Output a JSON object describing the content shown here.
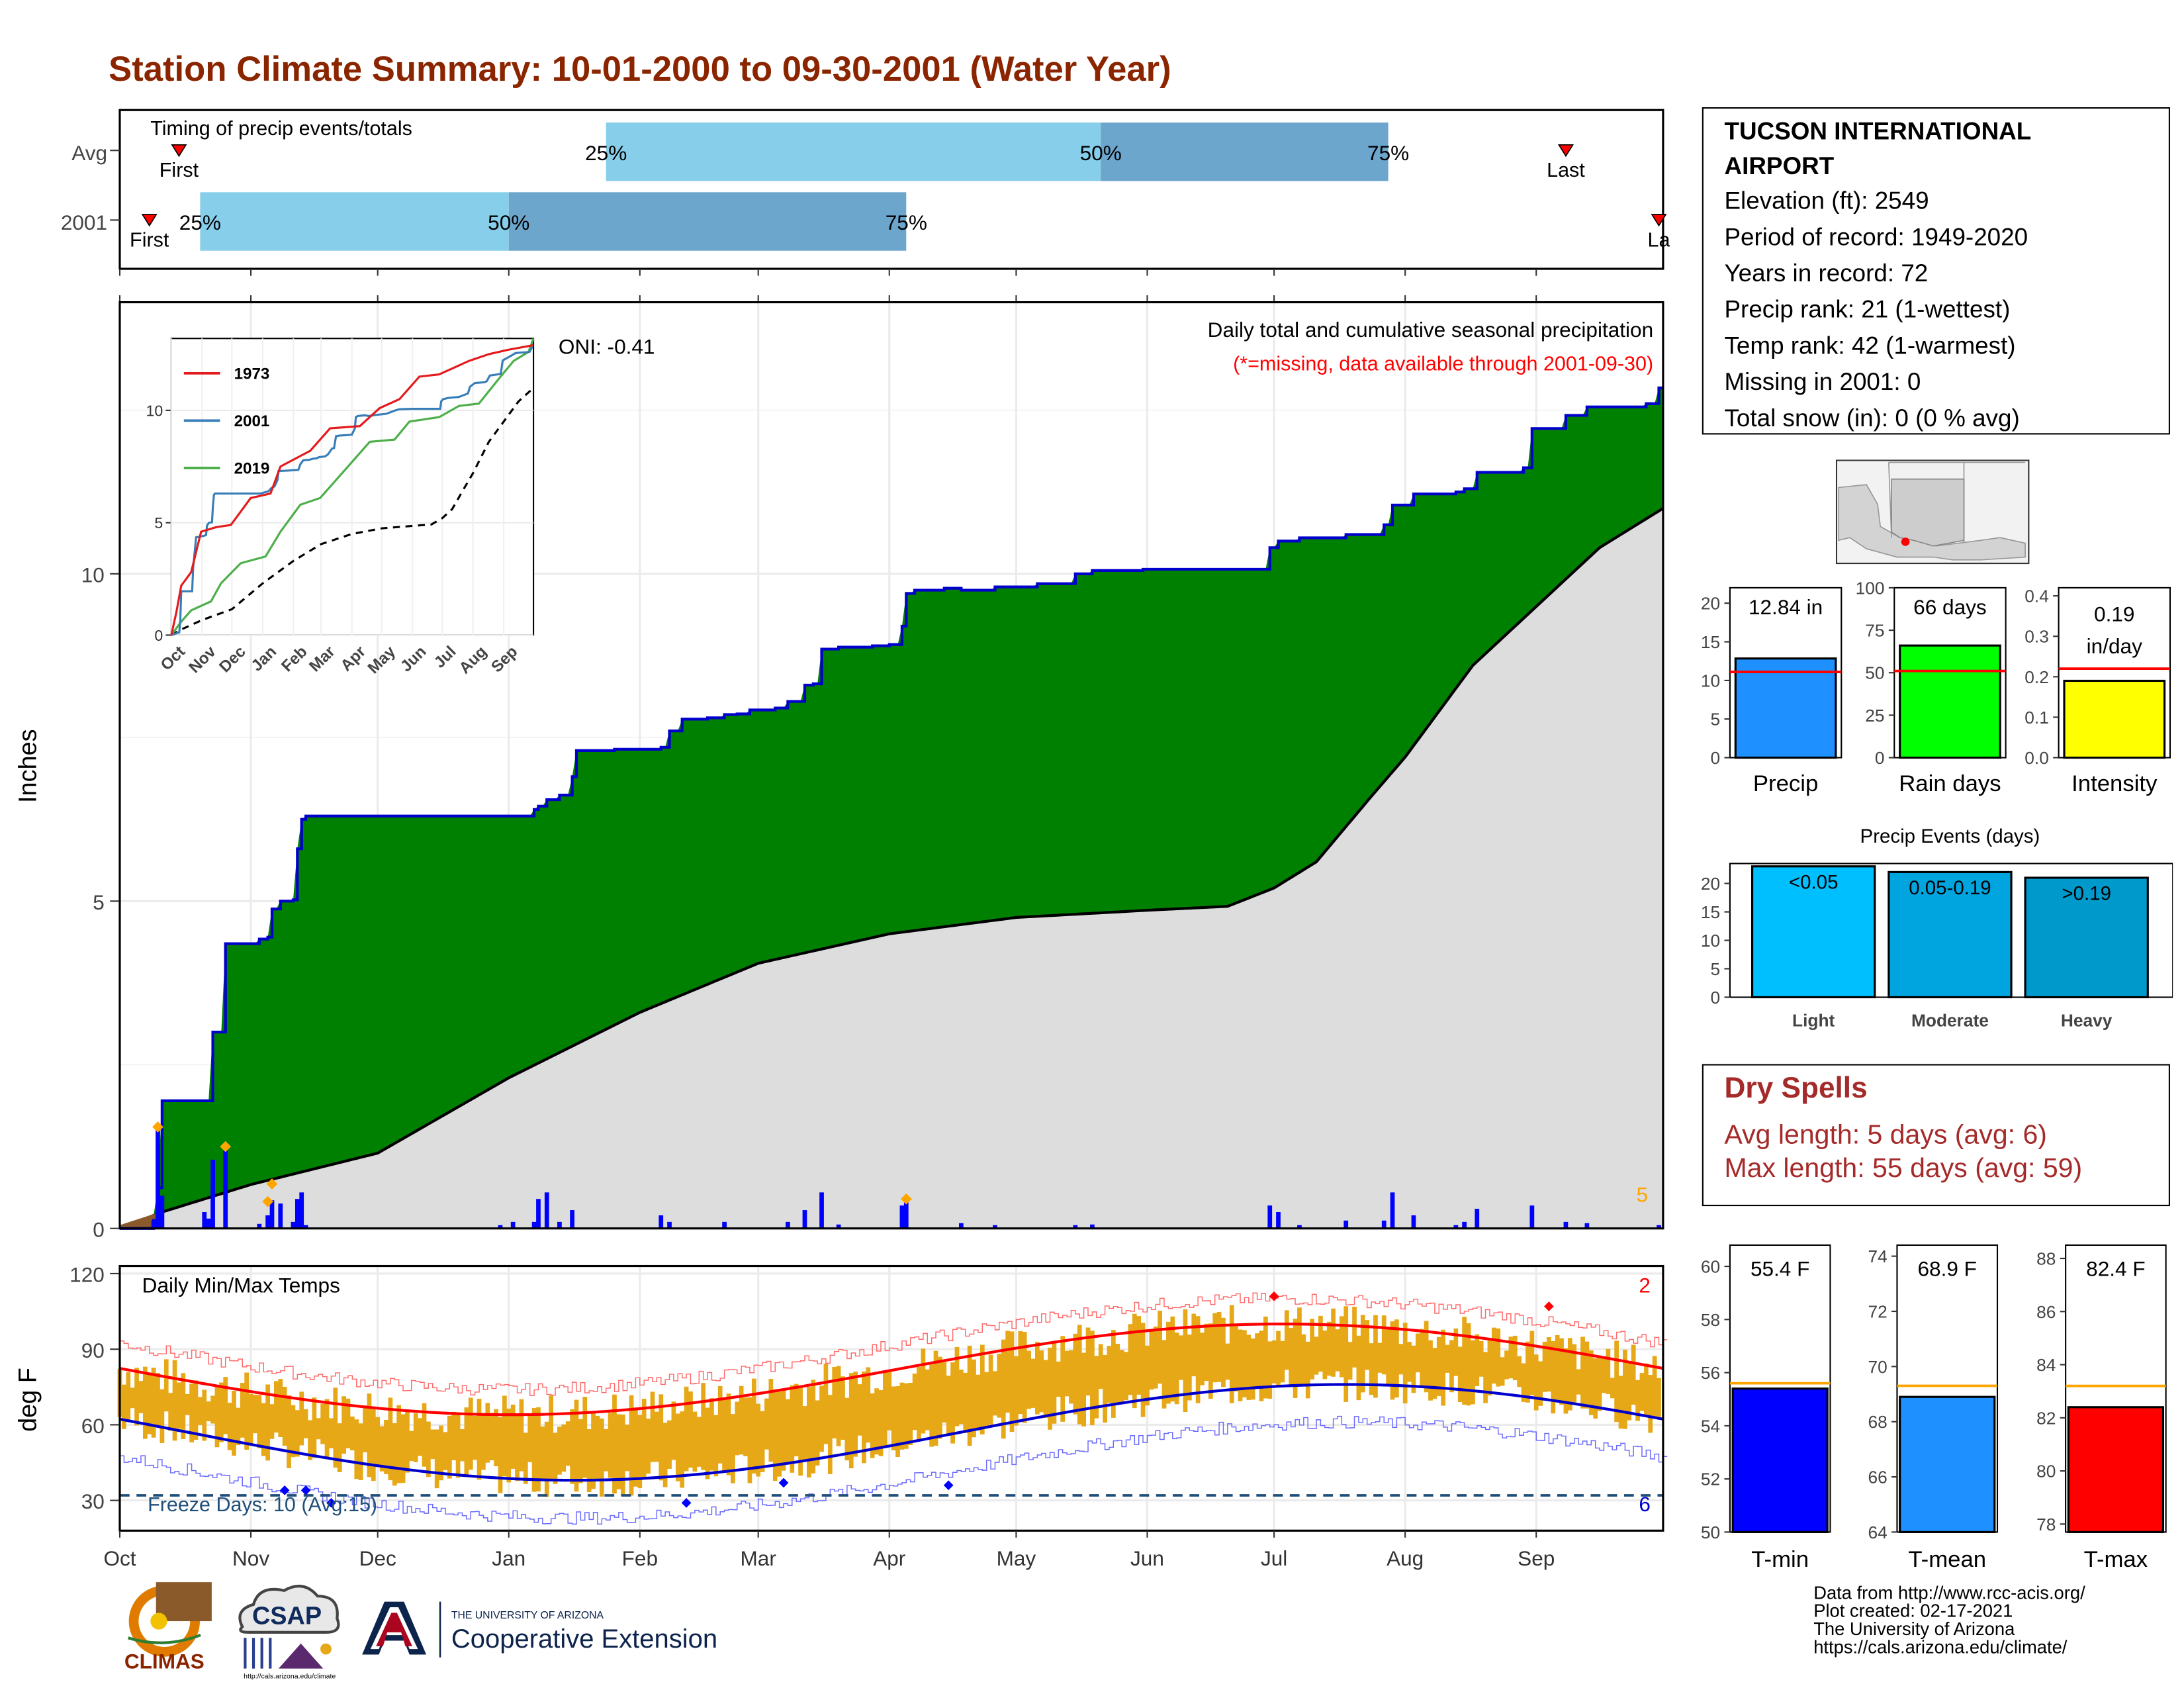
{
  "title": "Station Climate Summary: 10-01-2000 to 09-30-2001 (Water Year)",
  "colors": {
    "title": "#8B2500",
    "green": "#008000",
    "blue": "#0000CD",
    "grey": "#DDDDDD",
    "brown": "#8B5A2B",
    "orange": "#E6A817",
    "light25": "#87CEEB",
    "mid50": "#6CA6CD"
  },
  "timing": {
    "label": "Timing of precip events/totals",
    "rows": [
      {
        "name": "Avg",
        "first_label": "First",
        "last_label": "Last",
        "p25_label": "25%",
        "p50_label": "50%",
        "p75_label": "75%",
        "first": "Oct 15",
        "p25": "Jan 24",
        "p50": "May 21",
        "p75": "Jul 28",
        "last": "Sep 8"
      },
      {
        "name": "2001",
        "first_label": "First",
        "last_label": "La",
        "p25_label": "25%",
        "p50_label": "50%",
        "p75_label": "75%",
        "first": "Oct 8",
        "p25": "Oct 20",
        "p50": "Jan 1",
        "p75": "Apr 5",
        "last": "Sep 30"
      }
    ]
  },
  "precip": {
    "ylabel": "Inches",
    "caption": "Daily total and cumulative seasonal precipitation",
    "missing_note": "(*=missing, data available through 2001-09-30)",
    "oni": "ONI: -0.41",
    "count_label": "5",
    "inset": {
      "months": [
        "Oct",
        "Nov",
        "Dec",
        "Jan",
        "Feb",
        "Mar",
        "Apr",
        "May",
        "Jun",
        "Jul",
        "Aug",
        "Sep"
      ],
      "yticks": [
        "0",
        "5",
        "10"
      ],
      "legend": [
        "1973",
        "2001",
        "2019"
      ]
    }
  },
  "temps": {
    "label": "Daily Min/Max Temps",
    "ylabel": "deg F",
    "yticks": [
      "30",
      "60",
      "90",
      "120"
    ],
    "freeze_label": "Freeze Days: 10 (Avg:15)",
    "max_count": "2",
    "min_count": "6"
  },
  "xaxis": {
    "months": [
      "Oct",
      "Nov",
      "Dec",
      "Jan",
      "Feb",
      "Mar",
      "Apr",
      "May",
      "Jun",
      "Jul",
      "Aug",
      "Sep"
    ]
  },
  "station": {
    "name_line1": "TUCSON INTERNATIONAL",
    "name_line2": "AIRPORT",
    "lines": [
      "Elevation (ft): 2549",
      "Period of record: 1949-2020",
      "Years in record: 72",
      "Precip rank: 21 (1-wettest)",
      "Temp rank: 42 (1-warmest)",
      "Missing in 2001: 0",
      "Total snow (in): 0 (0 % avg)"
    ]
  },
  "mini_bars": [
    {
      "label": "Precip",
      "value_text": "12.84 in",
      "value": 12.84,
      "avg": 11.1,
      "ymax": 22,
      "yticks": [
        "0",
        "5",
        "10",
        "15",
        "20"
      ],
      "color": "#1E90FF"
    },
    {
      "label": "Rain days",
      "value_text": "66 days",
      "value": 66,
      "avg": 51,
      "ymax": 100,
      "yticks": [
        "0",
        "25",
        "50",
        "75",
        "100"
      ],
      "color": "#00FF00"
    },
    {
      "label": "Intensity",
      "value_text1": "0.19",
      "value_text2": "in/day",
      "value": 0.19,
      "avg": 0.22,
      "ymax": 0.42,
      "yticks": [
        "0.0",
        "0.1",
        "0.2",
        "0.3",
        "0.4"
      ],
      "color": "#FFFF00"
    }
  ],
  "events": {
    "title": "Precip Events (days)",
    "yticks": [
      "0",
      "5",
      "10",
      "15",
      "20"
    ],
    "bars": [
      {
        "label": "Light",
        "range": "<0.05",
        "value": 23,
        "color": "#00BFFF"
      },
      {
        "label": "Moderate",
        "range": "0.05-0.19",
        "value": 22,
        "color": "#00A5E0"
      },
      {
        "label": "Heavy",
        "range": ">0.19",
        "value": 21,
        "color": "#0099CC"
      }
    ]
  },
  "dry_spells": {
    "title": "Dry Spells",
    "avg_line": "Avg length: 5 days (avg: 6)",
    "max_line": "Max length: 55 days (avg: 59)"
  },
  "temp_bars": [
    {
      "label": "T-min",
      "value_text": "55.4 F",
      "value": 55.4,
      "avg": 55.6,
      "ymin": 50,
      "ymax": 60.8,
      "yticks": [
        "50",
        "52",
        "54",
        "56",
        "58",
        "60"
      ],
      "color": "#0000FF"
    },
    {
      "label": "T-mean",
      "value_text": "68.9 F",
      "value": 68.9,
      "avg": 69.3,
      "ymin": 64,
      "ymax": 74.4,
      "yticks": [
        "64",
        "66",
        "68",
        "70",
        "72",
        "74"
      ],
      "color": "#1E90FF"
    },
    {
      "label": "T-max",
      "value_text": "82.4 F",
      "value": 82.4,
      "avg": 83.2,
      "ymin": 77.7,
      "ymax": 88.5,
      "yticks": [
        "78",
        "80",
        "82",
        "84",
        "86",
        "88"
      ],
      "color": "#FF0000"
    }
  ],
  "footer": [
    "Data from http://www.rcc-acis.org/",
    "Plot created: 02-17-2021",
    "The University of Arizona",
    "https://cals.arizona.edu/climate/"
  ],
  "logos": {
    "climas": "CLIMAS",
    "csap": "CSAP",
    "csap_url": "http://cals.arizona.edu/climate",
    "ua_small": "THE UNIVERSITY OF ARIZONA",
    "ua_big": "Cooperative Extension"
  }
}
